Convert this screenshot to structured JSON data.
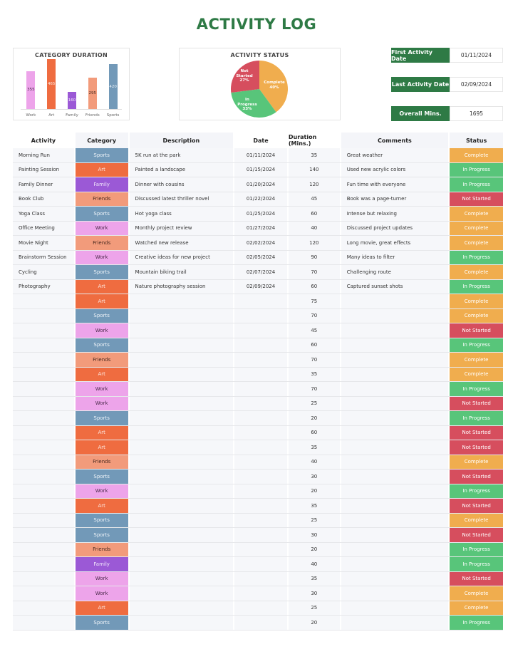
{
  "title": "ACTIVITY LOG",
  "colors": {
    "brand": "#2e7a45",
    "categories": {
      "Sports": "#7299b8",
      "Art": "#ef6c40",
      "Family": "#9b59d6",
      "Friends": "#f29b7b",
      "Work": "#eda4ea"
    },
    "category_text": {
      "Sports": "#eef3f8",
      "Art": "#fde8e0",
      "Family": "#f1e6fb",
      "Friends": "#4a2a20",
      "Work": "#4a2a4a"
    },
    "status": {
      "Complete": "#f0ad4e",
      "In Progress": "#58c57a",
      "Not Started": "#d64e5e"
    }
  },
  "chart_data": [
    {
      "type": "bar",
      "title": "CATEGORY DURATION",
      "categories": [
        "Work",
        "Art",
        "Family",
        "Friends",
        "Sports"
      ],
      "values": [
        355,
        465,
        160,
        295,
        420
      ],
      "colors": [
        "#eda4ea",
        "#ef6c40",
        "#9b59d6",
        "#f29b7b",
        "#7299b8"
      ],
      "xlabel": "",
      "ylabel": "",
      "grid": false,
      "legend": "none",
      "ylim": [
        0,
        500
      ]
    },
    {
      "type": "pie",
      "title": "ACTIVITY STATUS",
      "categories": [
        "Complete",
        "In Progress",
        "Not Started"
      ],
      "values": [
        40,
        33,
        27
      ],
      "labels": [
        "Complete 40%",
        "In Progress 33%",
        "Not Started 27%"
      ],
      "colors": [
        "#f0ad4e",
        "#58c57a",
        "#d64e5e"
      ]
    }
  ],
  "bar_chart": {
    "title": "CATEGORY DURATION",
    "bars": [
      {
        "label": "Work",
        "value": "355"
      },
      {
        "label": "Art",
        "value": "465"
      },
      {
        "label": "Family",
        "value": "160"
      },
      {
        "label": "Friends",
        "value": "295"
      },
      {
        "label": "Sports",
        "value": "420"
      }
    ]
  },
  "pie_chart": {
    "title": "ACTIVITY STATUS",
    "slices": [
      {
        "name": "Complete",
        "pct": "40%"
      },
      {
        "name": "In Progress",
        "pct": "33%"
      },
      {
        "name": "Not Started",
        "pct": "27%"
      }
    ]
  },
  "kpis": [
    {
      "label": "First Activity Date",
      "value": "01/11/2024"
    },
    {
      "label": "Last Activity Date",
      "value": "02/09/2024"
    },
    {
      "label": "Overall Mins.",
      "value": "1695"
    }
  ],
  "table": {
    "headers": [
      "Activity",
      "Category",
      "Description",
      "Date",
      "Duration (Mins.)",
      "Comments",
      "Status"
    ],
    "rows": [
      {
        "activity": "Morning Run",
        "category": "Sports",
        "description": "5K run at the park",
        "date": "01/11/2024",
        "duration": "35",
        "comments": "Great weather",
        "status": "Complete"
      },
      {
        "activity": "Painting Session",
        "category": "Art",
        "description": "Painted a landscape",
        "date": "01/15/2024",
        "duration": "140",
        "comments": "Used new acrylic colors",
        "status": "In Progress"
      },
      {
        "activity": "Family Dinner",
        "category": "Family",
        "description": "Dinner with cousins",
        "date": "01/20/2024",
        "duration": "120",
        "comments": "Fun time with everyone",
        "status": "In Progress"
      },
      {
        "activity": "Book Club",
        "category": "Friends",
        "description": "Discussed latest thriller novel",
        "date": "01/22/2024",
        "duration": "45",
        "comments": "Book was a page-turner",
        "status": "Not Started"
      },
      {
        "activity": "Yoga Class",
        "category": "Sports",
        "description": "Hot yoga class",
        "date": "01/25/2024",
        "duration": "60",
        "comments": "Intense but relaxing",
        "status": "Complete"
      },
      {
        "activity": "Office Meeting",
        "category": "Work",
        "description": "Monthly project review",
        "date": "01/27/2024",
        "duration": "40",
        "comments": "Discussed project updates",
        "status": "Complete"
      },
      {
        "activity": "Movie Night",
        "category": "Friends",
        "description": "Watched new release",
        "date": "02/02/2024",
        "duration": "120",
        "comments": "Long movie, great effects",
        "status": "Complete"
      },
      {
        "activity": "Brainstorm Session",
        "category": "Work",
        "description": "Creative ideas for new project",
        "date": "02/05/2024",
        "duration": "90",
        "comments": "Many ideas to filter",
        "status": "In Progress"
      },
      {
        "activity": "Cycling",
        "category": "Sports",
        "description": "Mountain biking trail",
        "date": "02/07/2024",
        "duration": "70",
        "comments": "Challenging route",
        "status": "Complete"
      },
      {
        "activity": "Photography",
        "category": "Art",
        "description": "Nature photography session",
        "date": "02/09/2024",
        "duration": "60",
        "comments": "Captured sunset shots",
        "status": "In Progress"
      },
      {
        "activity": "",
        "category": "Art",
        "description": "",
        "date": "",
        "duration": "75",
        "comments": "",
        "status": "Complete"
      },
      {
        "activity": "",
        "category": "Sports",
        "description": "",
        "date": "",
        "duration": "70",
        "comments": "",
        "status": "Complete"
      },
      {
        "activity": "",
        "category": "Work",
        "description": "",
        "date": "",
        "duration": "45",
        "comments": "",
        "status": "Not Started"
      },
      {
        "activity": "",
        "category": "Sports",
        "description": "",
        "date": "",
        "duration": "60",
        "comments": "",
        "status": "In Progress"
      },
      {
        "activity": "",
        "category": "Friends",
        "description": "",
        "date": "",
        "duration": "70",
        "comments": "",
        "status": "Complete"
      },
      {
        "activity": "",
        "category": "Art",
        "description": "",
        "date": "",
        "duration": "35",
        "comments": "",
        "status": "Complete"
      },
      {
        "activity": "",
        "category": "Work",
        "description": "",
        "date": "",
        "duration": "70",
        "comments": "",
        "status": "In Progress"
      },
      {
        "activity": "",
        "category": "Work",
        "description": "",
        "date": "",
        "duration": "25",
        "comments": "",
        "status": "Not Started"
      },
      {
        "activity": "",
        "category": "Sports",
        "description": "",
        "date": "",
        "duration": "20",
        "comments": "",
        "status": "In Progress"
      },
      {
        "activity": "",
        "category": "Art",
        "description": "",
        "date": "",
        "duration": "60",
        "comments": "",
        "status": "Not Started"
      },
      {
        "activity": "",
        "category": "Art",
        "description": "",
        "date": "",
        "duration": "35",
        "comments": "",
        "status": "Not Started"
      },
      {
        "activity": "",
        "category": "Friends",
        "description": "",
        "date": "",
        "duration": "40",
        "comments": "",
        "status": "Complete"
      },
      {
        "activity": "",
        "category": "Sports",
        "description": "",
        "date": "",
        "duration": "30",
        "comments": "",
        "status": "Not Started"
      },
      {
        "activity": "",
        "category": "Work",
        "description": "",
        "date": "",
        "duration": "20",
        "comments": "",
        "status": "In Progress"
      },
      {
        "activity": "",
        "category": "Art",
        "description": "",
        "date": "",
        "duration": "35",
        "comments": "",
        "status": "Not Started"
      },
      {
        "activity": "",
        "category": "Sports",
        "description": "",
        "date": "",
        "duration": "25",
        "comments": "",
        "status": "Complete"
      },
      {
        "activity": "",
        "category": "Sports",
        "description": "",
        "date": "",
        "duration": "30",
        "comments": "",
        "status": "Not Started"
      },
      {
        "activity": "",
        "category": "Friends",
        "description": "",
        "date": "",
        "duration": "20",
        "comments": "",
        "status": "In Progress"
      },
      {
        "activity": "",
        "category": "Family",
        "description": "",
        "date": "",
        "duration": "40",
        "comments": "",
        "status": "In Progress"
      },
      {
        "activity": "",
        "category": "Work",
        "description": "",
        "date": "",
        "duration": "35",
        "comments": "",
        "status": "Not Started"
      },
      {
        "activity": "",
        "category": "Work",
        "description": "",
        "date": "",
        "duration": "30",
        "comments": "",
        "status": "Complete"
      },
      {
        "activity": "",
        "category": "Art",
        "description": "",
        "date": "",
        "duration": "25",
        "comments": "",
        "status": "Complete"
      },
      {
        "activity": "",
        "category": "Sports",
        "description": "",
        "date": "",
        "duration": "20",
        "comments": "",
        "status": "In Progress"
      }
    ]
  }
}
